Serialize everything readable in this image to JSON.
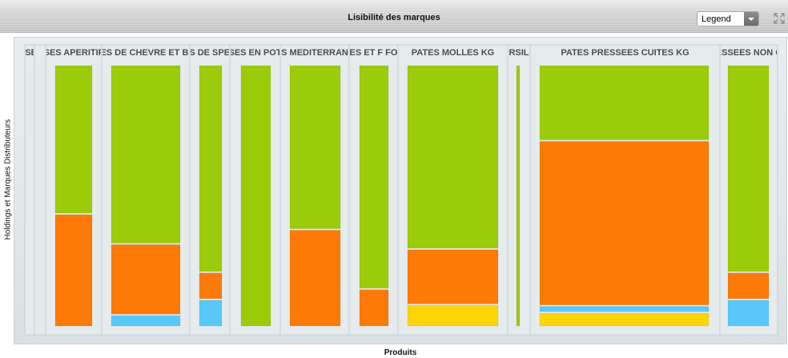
{
  "window": {
    "title": "Lisibilité des marques",
    "legend_select": "Legend"
  },
  "colors": {
    "green": "#9bcc09",
    "orange": "#fd7a07",
    "blue": "#58c8fa",
    "yellow": "#fed307",
    "panel": "#e6eced",
    "panel_border": "#c6ced2"
  },
  "icons": {
    "expand": "expand-icon",
    "dropdown": "chevron-down-icon"
  },
  "chart_data": {
    "type": "mosaic",
    "title": "Lisibilité des marques",
    "xlabel": "Produits",
    "ylabel": "Holdings et Marques Distributeurs",
    "legend": "Legend",
    "value_unit": "share of category (0-1)",
    "categories": [
      {
        "label": "ISSES",
        "segments": []
      },
      {
        "label": "",
        "segments": []
      },
      {
        "label": "SES APERITIF",
        "segments": [
          {
            "color": "green",
            "value": 0.57
          },
          {
            "color": "orange",
            "value": 0.43
          }
        ]
      },
      {
        "label": "ES DE CHEVRE ET BI",
        "segments": [
          {
            "color": "green",
            "value": 0.69
          },
          {
            "color": "orange",
            "value": 0.27
          },
          {
            "color": "blue",
            "value": 0.04
          }
        ]
      },
      {
        "label": "ES DE SPEC",
        "segments": [
          {
            "color": "green",
            "value": 0.8
          },
          {
            "color": "orange",
            "value": 0.1
          },
          {
            "color": "blue",
            "value": 0.1
          }
        ]
      },
      {
        "label": "SES EN POT",
        "segments": [
          {
            "color": "green",
            "value": 1.0
          }
        ]
      },
      {
        "label": "ES MEDITERRANE",
        "segments": [
          {
            "color": "green",
            "value": 0.63
          },
          {
            "color": "orange",
            "value": 0.37
          }
        ]
      },
      {
        "label": "ES ET F FO",
        "segments": [
          {
            "color": "green",
            "value": 0.86
          },
          {
            "color": "orange",
            "value": 0.14
          }
        ]
      },
      {
        "label": "PATES MOLLES KG",
        "segments": [
          {
            "color": "green",
            "value": 0.71
          },
          {
            "color": "orange",
            "value": 0.21
          },
          {
            "color": "yellow",
            "value": 0.08
          }
        ]
      },
      {
        "label": "RSIL",
        "segments": [
          {
            "color": "green",
            "value": 1.0
          }
        ]
      },
      {
        "label": "PATES PRESSEES CUITES KG",
        "segments": [
          {
            "color": "green",
            "value": 0.29
          },
          {
            "color": "orange",
            "value": 0.64
          },
          {
            "color": "blue",
            "value": 0.02
          },
          {
            "color": "yellow",
            "value": 0.05
          }
        ]
      },
      {
        "label": "ESSEES NON C",
        "segments": [
          {
            "color": "green",
            "value": 0.8
          },
          {
            "color": "orange",
            "value": 0.1
          },
          {
            "color": "blue",
            "value": 0.1
          }
        ]
      }
    ]
  }
}
